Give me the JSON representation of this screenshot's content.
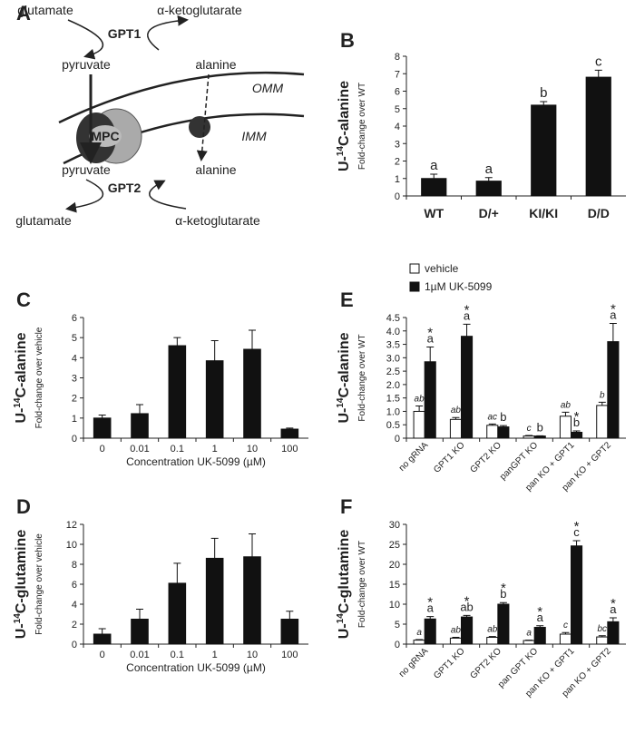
{
  "diagram": {
    "panel": "A",
    "nodes": [
      {
        "label": "glutamate"
      },
      {
        "label": "α-ketoglutarate"
      },
      {
        "label": "GPT1"
      },
      {
        "label": "pyruvate"
      },
      {
        "label": "alanine"
      },
      {
        "label": "OMM"
      },
      {
        "label": "MPC"
      },
      {
        "label": "IMM"
      },
      {
        "label": "pyruvate"
      },
      {
        "label": "alanine"
      },
      {
        "label": "GPT2"
      },
      {
        "label": "glutamate"
      },
      {
        "label": "α-ketoglutarate"
      }
    ]
  },
  "chart_data": [
    {
      "type": "bar",
      "panel": "B",
      "ylabel_prefix": "U-",
      "ylabel_sup": "14",
      "ylabel_suffix": "C-alanine",
      "y_sublabel": "Fold-change over WT",
      "categories": [
        "WT",
        "D/+",
        "KI/KI",
        "D/D"
      ],
      "values": [
        1.0,
        0.85,
        5.2,
        6.8
      ],
      "errors": [
        0.25,
        0.2,
        0.2,
        0.4
      ],
      "letters": [
        "a",
        "a",
        "b",
        "c"
      ],
      "color": "#111111",
      "ylim": [
        0,
        8
      ],
      "yticks": [
        0,
        1,
        2,
        3,
        4,
        5,
        6,
        7,
        8
      ]
    },
    {
      "type": "bar",
      "panel": "C",
      "ylabel_prefix": "U-",
      "ylabel_sup": "14",
      "ylabel_suffix": "C-alanine",
      "y_sublabel": "Fold-change over vehicle",
      "xlabel": "Concentration UK-5099 (µM)",
      "categories": [
        "0",
        "0.01",
        "0.1",
        "1",
        "10",
        "100"
      ],
      "values": [
        1.0,
        1.22,
        4.6,
        3.85,
        4.42,
        0.45
      ],
      "errors": [
        0.15,
        0.45,
        0.4,
        1.0,
        0.95,
        0.05
      ],
      "color": "#111111",
      "ylim": [
        0,
        6
      ],
      "yticks": [
        0,
        1,
        2,
        3,
        4,
        5,
        6
      ]
    },
    {
      "type": "bar",
      "panel": "D",
      "ylabel_prefix": "U-",
      "ylabel_sup": "14",
      "ylabel_suffix": "C-glutamine",
      "y_sublabel": "Fold-change over vehicle",
      "xlabel": "Concentration UK-5099 (µM)",
      "categories": [
        "0",
        "0.01",
        "0.1",
        "1",
        "10",
        "100"
      ],
      "values": [
        1.0,
        2.5,
        6.1,
        8.6,
        8.75,
        2.5
      ],
      "errors": [
        0.55,
        1.0,
        2.0,
        2.0,
        2.3,
        0.8
      ],
      "color": "#111111",
      "ylim": [
        0,
        12
      ],
      "yticks": [
        0,
        2,
        4,
        6,
        8,
        10,
        12
      ]
    },
    {
      "type": "bar",
      "panel": "E",
      "ylabel_prefix": "U-",
      "ylabel_sup": "14",
      "ylabel_suffix": "C-alanine",
      "y_sublabel": "Fold-change over WT",
      "categories": [
        "no gRNA",
        "GPT1 KO",
        "GPT2 KO",
        "panGPT KO",
        "pan KO + GPT1",
        "pan KO + GPT2"
      ],
      "series": [
        {
          "name": "vehicle",
          "color": "#ffffff",
          "values": [
            1.0,
            0.7,
            0.48,
            0.08,
            0.82,
            1.22
          ],
          "errors": [
            0.2,
            0.07,
            0.05,
            0.02,
            0.15,
            0.12
          ],
          "letters": [
            "ab",
            "ab",
            "ac",
            "c",
            "ab",
            "b"
          ]
        },
        {
          "name": "1µM UK-5099",
          "color": "#111111",
          "values": [
            2.85,
            3.8,
            0.42,
            0.08,
            0.22,
            3.6
          ],
          "errors": [
            0.55,
            0.45,
            0.05,
            0.01,
            0.05,
            0.68
          ],
          "letters": [
            "a",
            "a",
            "b",
            "b",
            "b",
            "a"
          ],
          "stars": [
            "*",
            "*",
            null,
            null,
            "*",
            "*"
          ]
        }
      ],
      "ylim": [
        0,
        4.5
      ],
      "yticks": [
        0,
        0.5,
        {
          "value": 1,
          "label": "1.0"
        },
        1.5,
        {
          "value": 2,
          "label": "2.0"
        },
        2.5,
        {
          "value": 3,
          "label": "3.0"
        },
        3.5,
        {
          "value": 4,
          "label": "4.0"
        },
        4.5
      ]
    },
    {
      "type": "bar",
      "panel": "F",
      "ylabel_prefix": "U-",
      "ylabel_sup": "14",
      "ylabel_suffix": "C-glutamine",
      "y_sublabel": "Fold-change over WT",
      "categories": [
        "no gRNA",
        "GPT1 KO",
        "GPT2 KO",
        "pan GPT KO",
        "pan KO + GPT1",
        "pan KO + GPT2"
      ],
      "series": [
        {
          "color": "#ffffff",
          "values": [
            1.0,
            1.5,
            1.7,
            0.9,
            2.5,
            1.8
          ],
          "errors": [
            0.15,
            0.2,
            0.2,
            0.1,
            0.4,
            0.3
          ],
          "letters": [
            "a",
            "ab",
            "ab",
            "a",
            "c",
            "bc"
          ]
        },
        {
          "color": "#111111",
          "values": [
            6.3,
            6.8,
            10.0,
            4.2,
            24.6,
            5.6
          ],
          "errors": [
            0.6,
            0.4,
            0.4,
            0.4,
            1.3,
            1.0
          ],
          "letters": [
            "a",
            "ab",
            "b",
            "a",
            "c",
            "a"
          ],
          "stars": [
            "*",
            "*",
            "*",
            "*",
            "*",
            "*"
          ]
        }
      ],
      "ylim": [
        0,
        30
      ],
      "yticks": [
        0,
        5,
        10,
        15,
        20,
        25,
        30
      ]
    }
  ]
}
